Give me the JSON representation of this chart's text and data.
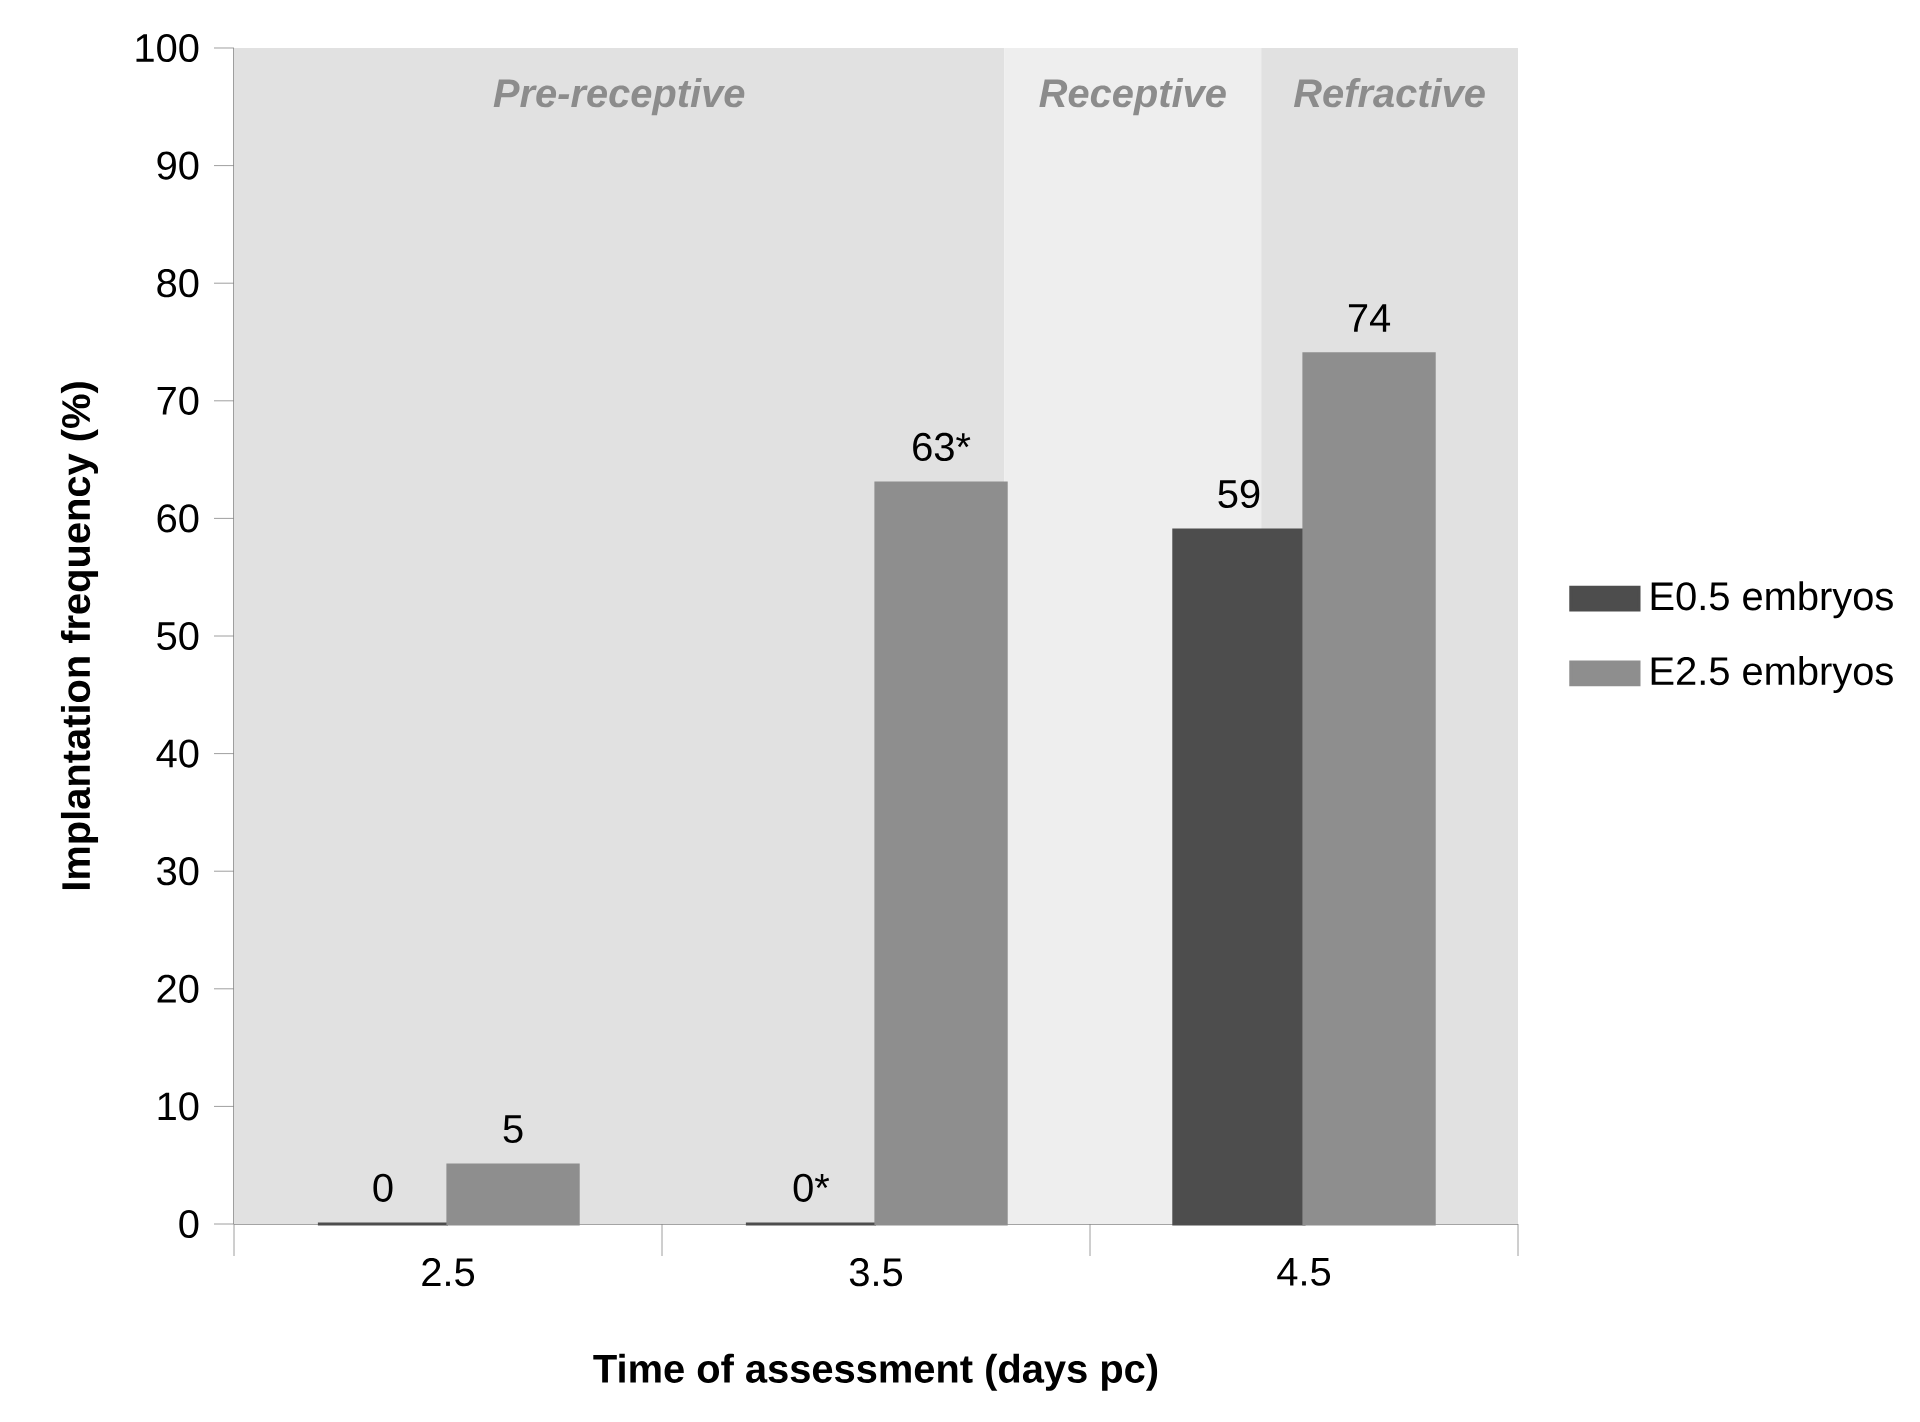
{
  "chart_data": {
    "type": "bar",
    "xlabel": "Time of assessment (days pc)",
    "ylabel": "Implantation frequency (%)",
    "x": [
      2.5,
      3.5,
      4.5
    ],
    "series": [
      {
        "name": "E0.5 embryos",
        "color": "#4d4d4d",
        "values": [
          0,
          0,
          59
        ],
        "value_labels": [
          "0",
          "0*",
          "59"
        ]
      },
      {
        "name": "E2.5 embryos",
        "color": "#8e8e8e",
        "values": [
          5,
          63,
          74
        ],
        "value_labels": [
          "5",
          "63*",
          "74"
        ]
      }
    ],
    "xlim": [
      2,
      5
    ],
    "xticks": [
      {
        "value": 2,
        "label": null
      },
      2.5,
      {
        "value": 3,
        "label": null
      },
      3.5,
      {
        "value": 4,
        "label": null
      },
      4.5,
      {
        "value": 5,
        "label": null
      }
    ],
    "ylim": [
      0,
      100
    ],
    "yticks": [
      0,
      10,
      20,
      30,
      40,
      50,
      60,
      70,
      80,
      90,
      100
    ],
    "bands": [
      {
        "axis": "x",
        "from": 2,
        "to": 3.8,
        "label": "Pre-receptive",
        "color": "#e1e1e1"
      },
      {
        "axis": "x",
        "from": 3.8,
        "to": 4.4,
        "label": "Receptive",
        "color": "#eeeeee"
      },
      {
        "axis": "x",
        "from": 4.4,
        "to": 5,
        "label": "Refractive",
        "color": "#e1e1e1"
      }
    ],
    "legend": "right"
  }
}
